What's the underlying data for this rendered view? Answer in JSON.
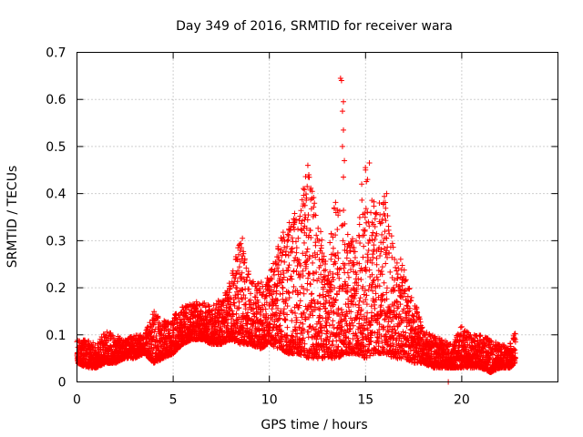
{
  "chart_data": {
    "type": "scatter",
    "title": "Day 349 of 2016, SRMTID for receiver wara",
    "xlabel": "GPS time / hours",
    "ylabel": "SRMTID / TECUs",
    "xlim": [
      0,
      25
    ],
    "ylim": [
      0,
      0.7
    ],
    "xticks": [
      0,
      5,
      10,
      15,
      20
    ],
    "xtick_labels": [
      "0",
      "5",
      "10",
      "15",
      "20"
    ],
    "yticks": [
      0,
      0.1,
      0.2,
      0.3,
      0.4,
      0.5,
      0.6,
      0.7
    ],
    "ytick_labels": [
      "0",
      "0.1",
      "0.2",
      "0.3",
      "0.4",
      "0.5",
      "0.6",
      "0.7"
    ],
    "grid": true,
    "marker": "+",
    "series": [
      {
        "name": "SRMTID",
        "color": "#ff0000",
        "envelope_x": [
          0,
          0.5,
          1,
          1.5,
          2,
          2.5,
          3,
          3.5,
          4,
          4.5,
          5,
          5.5,
          6,
          6.5,
          7,
          7.5,
          8,
          8.5,
          9,
          9.5,
          10,
          10.5,
          11,
          11.5,
          12,
          12.5,
          13,
          13.5,
          14,
          14.5,
          15,
          15.5,
          16,
          16.5,
          17,
          17.5,
          18,
          18.5,
          19,
          19.5,
          20,
          20.5,
          21,
          21.5,
          22,
          22.5,
          22.8
        ],
        "envelope_low": [
          0.04,
          0.03,
          0.03,
          0.04,
          0.04,
          0.05,
          0.05,
          0.06,
          0.04,
          0.05,
          0.06,
          0.08,
          0.09,
          0.09,
          0.08,
          0.08,
          0.09,
          0.08,
          0.08,
          0.07,
          0.08,
          0.07,
          0.06,
          0.06,
          0.05,
          0.05,
          0.05,
          0.05,
          0.06,
          0.06,
          0.05,
          0.06,
          0.06,
          0.05,
          0.05,
          0.04,
          0.04,
          0.03,
          0.03,
          0.03,
          0.03,
          0.03,
          0.03,
          0.02,
          0.03,
          0.03,
          0.04
        ],
        "envelope_high": [
          0.09,
          0.09,
          0.08,
          0.11,
          0.1,
          0.09,
          0.1,
          0.1,
          0.15,
          0.13,
          0.14,
          0.16,
          0.17,
          0.17,
          0.16,
          0.18,
          0.22,
          0.31,
          0.22,
          0.21,
          0.23,
          0.3,
          0.35,
          0.37,
          0.46,
          0.36,
          0.25,
          0.42,
          0.35,
          0.3,
          0.46,
          0.38,
          0.4,
          0.28,
          0.25,
          0.18,
          0.11,
          0.1,
          0.09,
          0.08,
          0.12,
          0.1,
          0.1,
          0.09,
          0.08,
          0.08,
          0.11
        ],
        "notable_points": [
          {
            "x": 13.7,
            "y": 0.645
          },
          {
            "x": 13.75,
            "y": 0.64
          },
          {
            "x": 13.85,
            "y": 0.595
          },
          {
            "x": 13.8,
            "y": 0.575
          },
          {
            "x": 13.85,
            "y": 0.535
          },
          {
            "x": 13.8,
            "y": 0.5
          },
          {
            "x": 13.9,
            "y": 0.47
          },
          {
            "x": 13.85,
            "y": 0.435
          },
          {
            "x": 12.0,
            "y": 0.46
          },
          {
            "x": 12.05,
            "y": 0.44
          },
          {
            "x": 15.2,
            "y": 0.465
          },
          {
            "x": 15.0,
            "y": 0.45
          },
          {
            "x": 15.1,
            "y": 0.43
          },
          {
            "x": 14.8,
            "y": 0.42
          },
          {
            "x": 16.1,
            "y": 0.4
          },
          {
            "x": 8.6,
            "y": 0.305
          },
          {
            "x": 8.55,
            "y": 0.285
          },
          {
            "x": 19.3,
            "y": 0.0
          }
        ]
      }
    ]
  }
}
